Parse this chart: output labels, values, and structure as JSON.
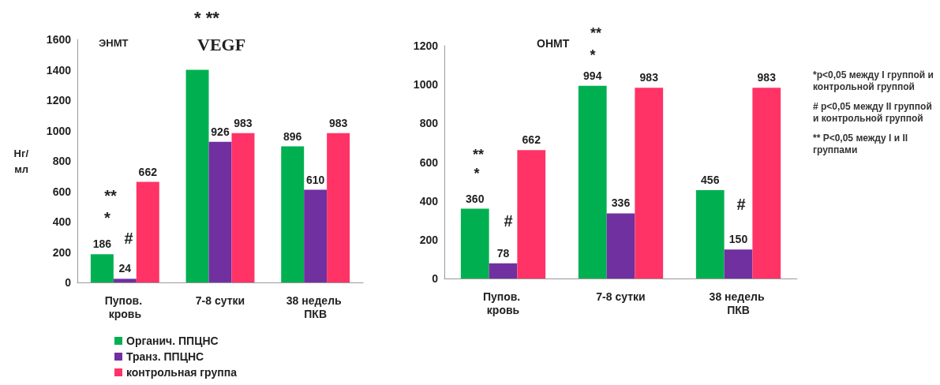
{
  "chart_data": [
    {
      "type": "bar",
      "title": "VEGF",
      "subtitle": "ЭНМТ",
      "ylabel": "Нг/ мл",
      "categories": [
        "Пупов. кровь",
        "7-8 сутки",
        "38 недель ПКВ"
      ],
      "series": [
        {
          "name": "Органич. ППЦНС",
          "color": "#00b050",
          "values": [
            186,
            1400,
            896
          ],
          "value_labels": [
            "186",
            null,
            "896"
          ]
        },
        {
          "name": "Транз. ППЦНС",
          "color": "#7030a0",
          "values": [
            24,
            926,
            610
          ],
          "value_labels": [
            "24",
            "926",
            "610"
          ]
        },
        {
          "name": "контрольная группа",
          "color": "#ff3366",
          "values": [
            662,
            983,
            983
          ],
          "value_labels": [
            "662",
            "983",
            "983"
          ]
        }
      ],
      "ylim": [
        0,
        1600
      ],
      "yticks": [
        0,
        200,
        400,
        600,
        800,
        1000,
        1200,
        1400,
        1600
      ],
      "grid": false,
      "legend": "bottom",
      "annotations": [
        "* **",
        "**",
        "*",
        "#"
      ]
    },
    {
      "type": "bar",
      "title": "ОНМТ",
      "categories": [
        "Пупов. кровь",
        "7-8 сутки",
        "38 недель ПКВ"
      ],
      "series": [
        {
          "color": "#00b050",
          "values": [
            360,
            994,
            456
          ]
        },
        {
          "color": "#7030a0",
          "values": [
            78,
            336,
            150
          ]
        },
        {
          "color": "#ff3366",
          "values": [
            662,
            983,
            983
          ]
        }
      ],
      "ylim": [
        0,
        1200
      ],
      "yticks": [
        0,
        200,
        400,
        600,
        800,
        1000,
        1200
      ],
      "grid": false,
      "legend": false,
      "data_labels": true,
      "annotations": [
        "**",
        "*",
        "#",
        "**",
        "*",
        "#"
      ]
    },
    {
      "type": "other",
      "annotations": [
        "*p<0,05 между I группой и контрольной группой",
        "# p<0,05 между II группой и контрольной группой",
        "** P<0,05 между I и II группами"
      ]
    }
  ]
}
